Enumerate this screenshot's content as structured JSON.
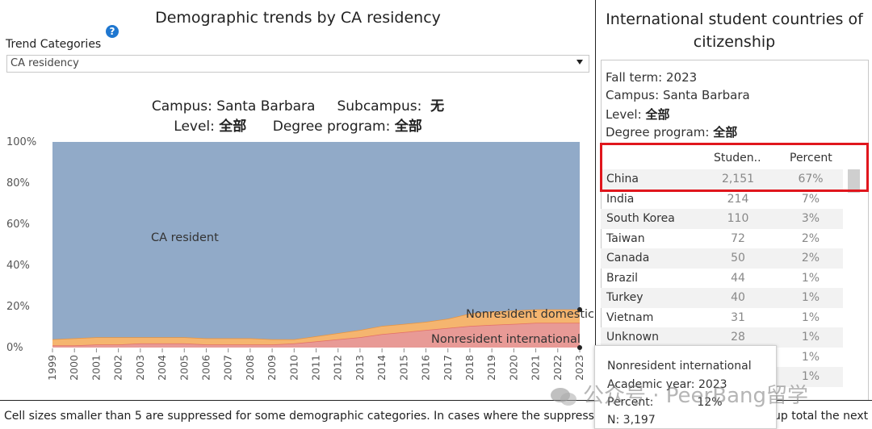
{
  "left_panel": {
    "title": "Demographic trends by CA residency",
    "help_icon": "?",
    "trend_label": "Trend Categories",
    "dropdown_value": "CA residency",
    "filters": {
      "campus_label": "Campus:",
      "campus_value": "Santa Barbara",
      "subcampus_label": "Subcampus:",
      "subcampus_value": "无",
      "level_label": "Level:",
      "level_value": "全部",
      "degree_label": "Degree program:",
      "degree_value": "全部"
    }
  },
  "chart_data": {
    "type": "area",
    "stacked": true,
    "x": [
      1999,
      2000,
      2001,
      2002,
      2003,
      2004,
      2005,
      2006,
      2007,
      2008,
      2009,
      2010,
      2011,
      2012,
      2013,
      2014,
      2015,
      2016,
      2017,
      2018,
      2019,
      2020,
      2021,
      2022,
      2023
    ],
    "series": [
      {
        "name": "Nonresident international",
        "color": "#e89a96",
        "values": [
          1,
          1,
          1.5,
          1.5,
          2,
          2,
          2,
          1.5,
          1.5,
          1.5,
          1.5,
          2,
          3,
          4,
          5,
          6.5,
          7.5,
          8.5,
          9.5,
          10.5,
          11,
          11.5,
          12,
          12,
          12
        ]
      },
      {
        "name": "Nonresident domestic",
        "color": "#f5b56f",
        "values": [
          3,
          3.5,
          3.5,
          3.5,
          3,
          3,
          3,
          3,
          3,
          3,
          2.5,
          2,
          2.5,
          3,
          3.5,
          4,
          4,
          4,
          4.5,
          6,
          6.5,
          6.5,
          6.5,
          6.5,
          6.5
        ]
      },
      {
        "name": "CA resident",
        "color": "#91aac8",
        "values": [
          96,
          95.5,
          95,
          95,
          95,
          95,
          95,
          95.5,
          95.5,
          95.5,
          96,
          96,
          94.5,
          93,
          91.5,
          89.5,
          88.5,
          87.5,
          86,
          83.5,
          82.5,
          82,
          81.5,
          81.5,
          81.5
        ]
      }
    ],
    "y_ticks": [
      "100%",
      "80%",
      "60%",
      "40%",
      "20%",
      "0%"
    ],
    "ylim": [
      0,
      100
    ],
    "legend_labels": {
      "ca_resident": "CA resident",
      "nonresident_domestic": "Nonresident domestic",
      "nonresident_international": "Nonresident international"
    }
  },
  "footnote": "Cell sizes smaller than 5 are suppressed for some demographic categories. In cases where the suppressed",
  "footnote_right": "up total the next",
  "right_panel": {
    "title_line1": "International student countries of",
    "title_line2": "citizenship",
    "fall_term": "Fall term: 2023",
    "campus": "Campus: Santa Barbara",
    "level_label": "Level:",
    "level_value": "全部",
    "degree_label": "Degree program:",
    "degree_value": "全部",
    "col_students": "Studen..",
    "col_percent": "Percent",
    "rows": [
      {
        "country": "China",
        "students": "2,151",
        "percent": "67%"
      },
      {
        "country": "India",
        "students": "214",
        "percent": "7%"
      },
      {
        "country": "South Korea",
        "students": "110",
        "percent": "3%"
      },
      {
        "country": "Taiwan",
        "students": "72",
        "percent": "2%"
      },
      {
        "country": "Canada",
        "students": "50",
        "percent": "2%"
      },
      {
        "country": "Brazil",
        "students": "44",
        "percent": "1%"
      },
      {
        "country": "Turkey",
        "students": "40",
        "percent": "1%"
      },
      {
        "country": "Vietnam",
        "students": "31",
        "percent": "1%"
      },
      {
        "country": "Unknown",
        "students": "28",
        "percent": "1%"
      },
      {
        "country": "",
        "students": "",
        "percent": "1%"
      },
      {
        "country": "",
        "students": "",
        "percent": "1%"
      }
    ]
  },
  "tooltip": {
    "series": "Nonresident international",
    "year_label": "Academic year:",
    "year_value": "2023",
    "percent_label": "Percent:",
    "percent_value": "12%",
    "n_label": "N:",
    "n_value": "3,197"
  },
  "watermark": "公众号 · PeerBang留学",
  "colors": {
    "highlight": "#e0161d",
    "help_icon": "#1f77d0"
  }
}
